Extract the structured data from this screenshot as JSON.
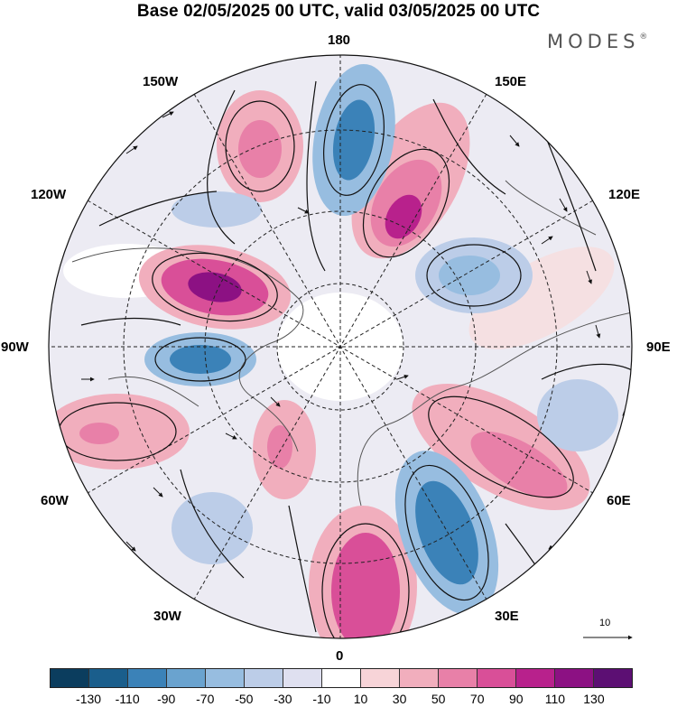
{
  "title": "Base 02/05/2025 00 UTC, valid 03/05/2025 00 UTC",
  "brand": "MODES",
  "brand_mark": "®",
  "longitude_labels": {
    "top": "180",
    "bottom": "0",
    "left": "90W",
    "right": "90E",
    "upper_left": "150W",
    "upper_left_mid": "120W",
    "upper_right": "150E",
    "upper_right_mid": "120E",
    "lower_left": "60W",
    "lower_left_bottom": "30W",
    "lower_right": "60E",
    "lower_right_bottom": "30E"
  },
  "vector_scale_label": "10",
  "colorbar": {
    "colors": [
      "#0b3d5e",
      "#1a5e8c",
      "#3b82b8",
      "#6aa3cf",
      "#97bde0",
      "#bccde8",
      "#dfe0f0",
      "#ffffff",
      "#f7d4d8",
      "#f1aebd",
      "#e880a8",
      "#d94f98",
      "#b8218c",
      "#8c1183",
      "#5c0f73"
    ],
    "tick_labels": [
      "-130",
      "-110",
      "-90",
      "-70",
      "-50",
      "-30",
      "-10",
      "10",
      "30",
      "50",
      "70",
      "90",
      "110",
      "130"
    ]
  }
}
